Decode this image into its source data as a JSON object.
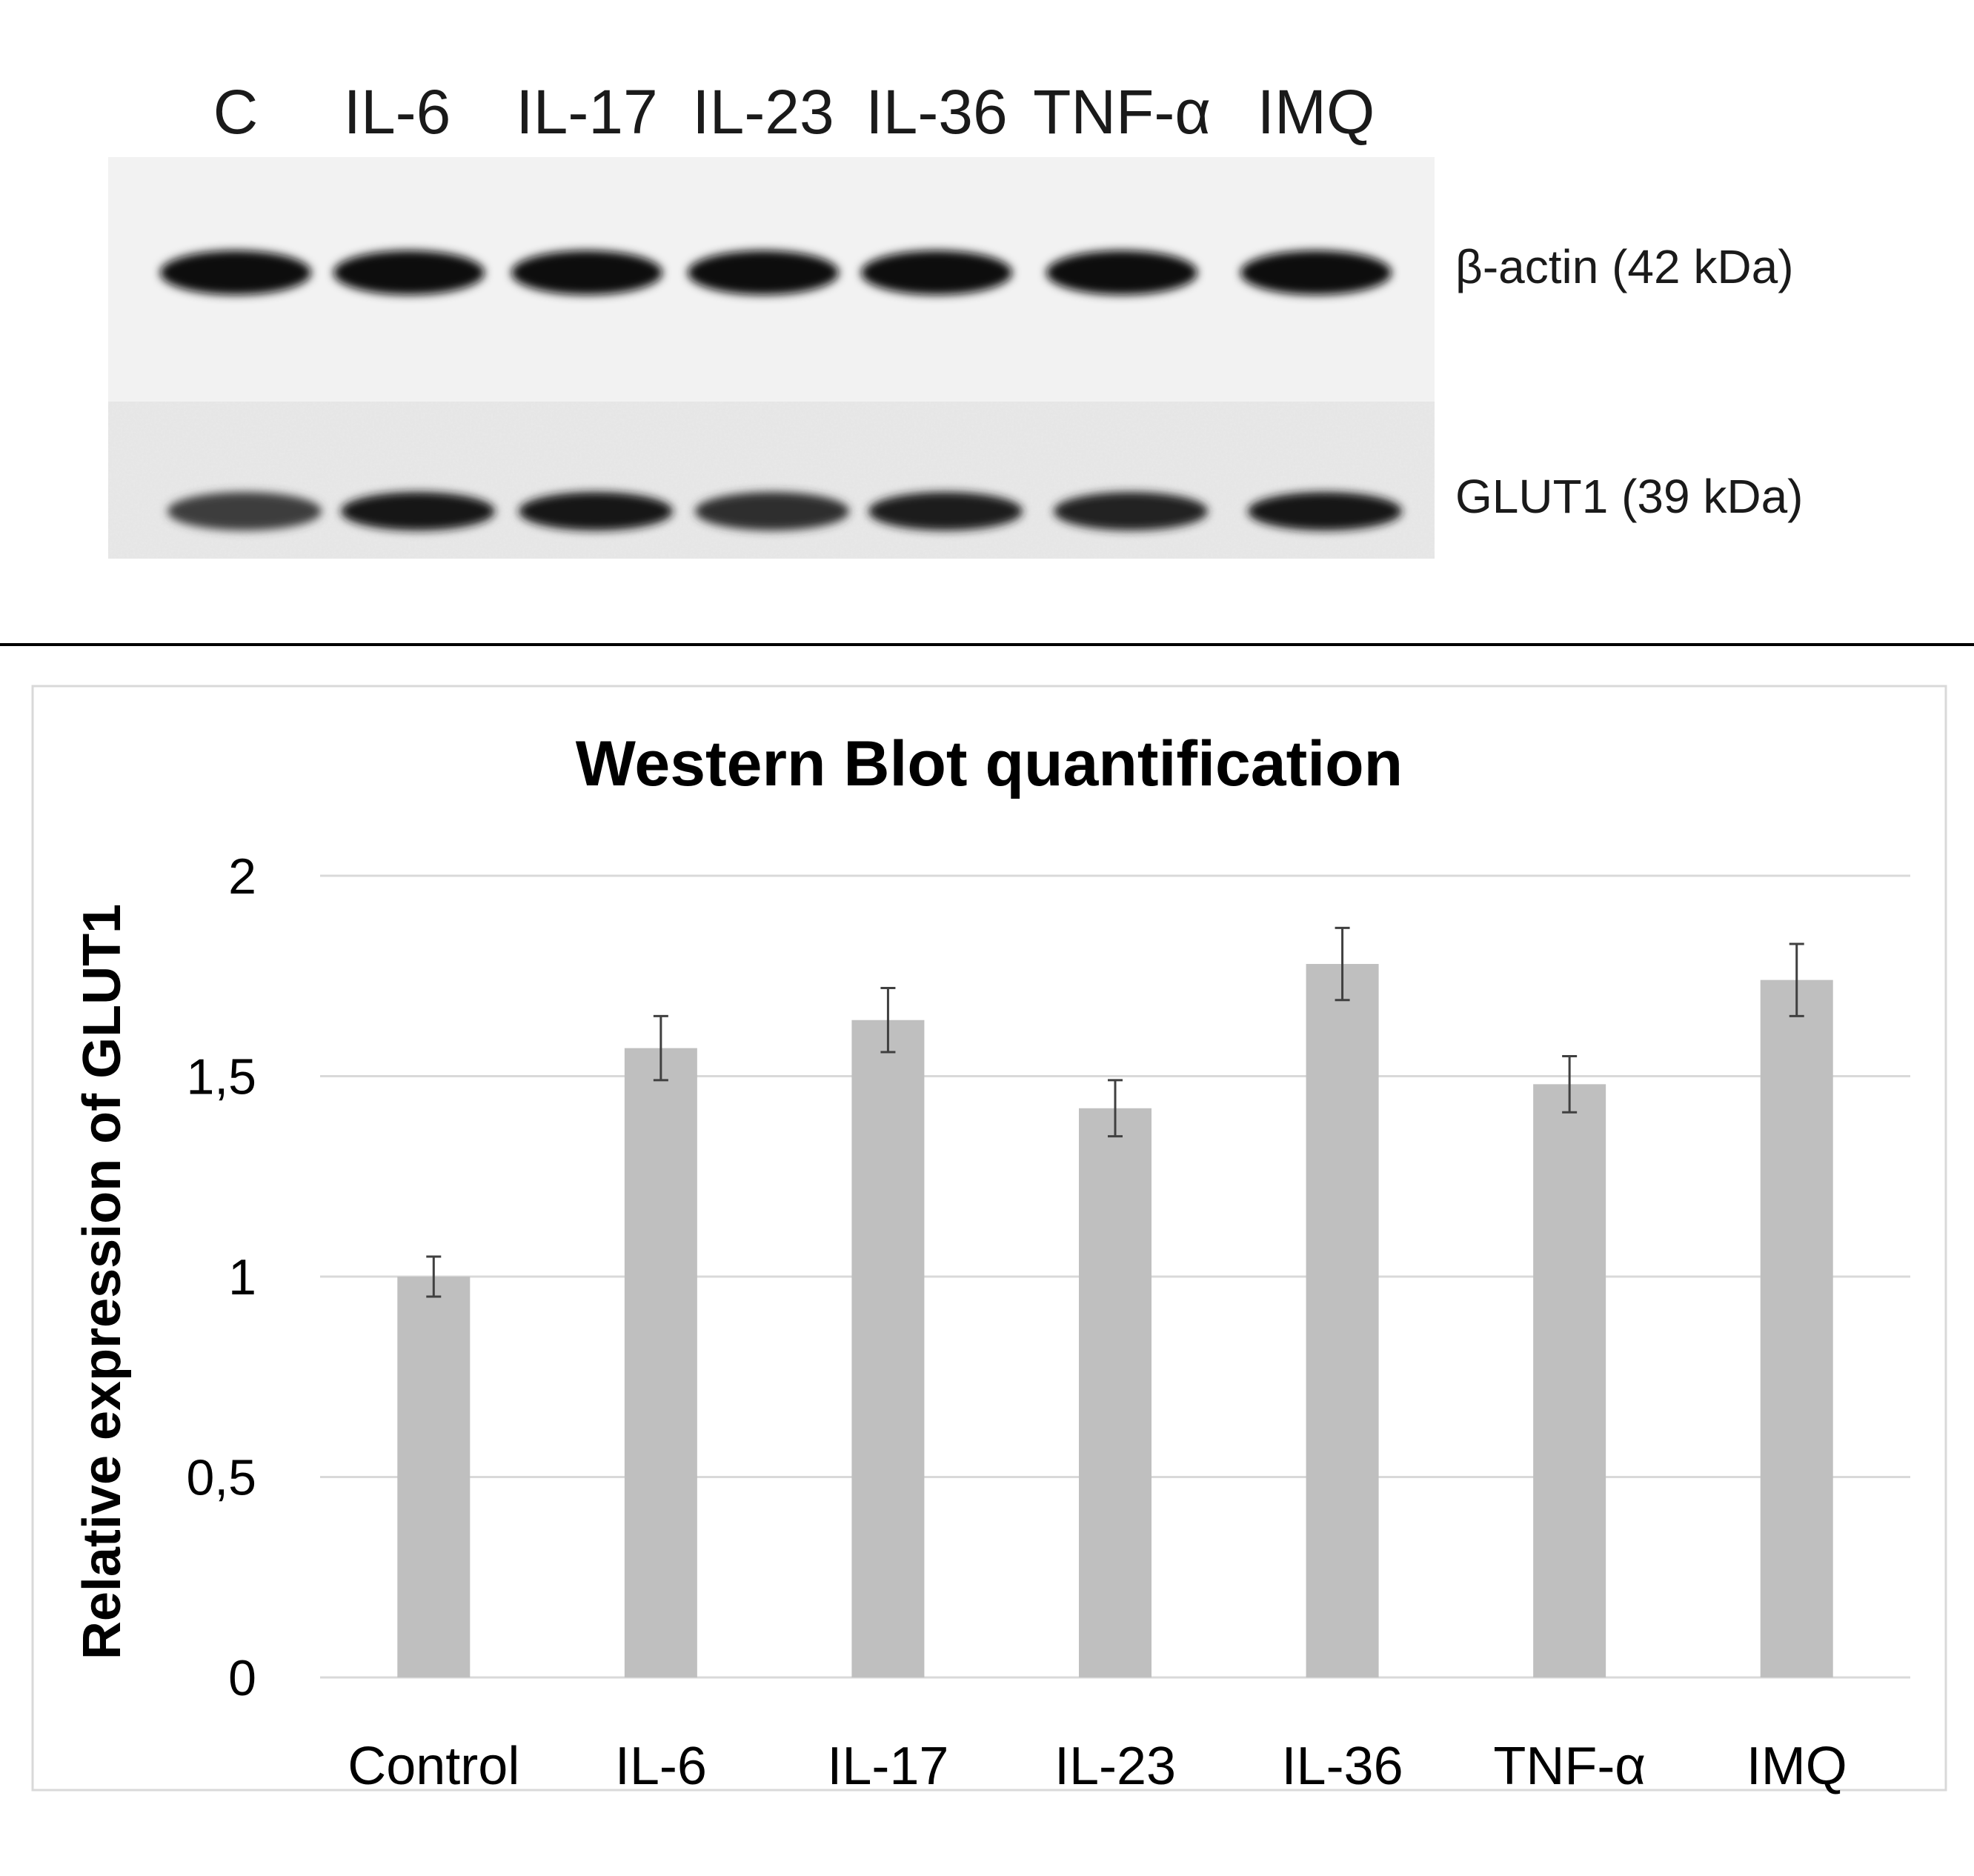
{
  "blot": {
    "lane_labels": [
      "C",
      "IL-6",
      "IL-17",
      "IL-23",
      "IL-36",
      "TNF-α",
      "IMQ"
    ],
    "band_labels": [
      "β-actin (42 kDa)",
      "GLUT1  (39 kDa)"
    ],
    "glut1_relative_darkness": [
      0.55,
      1.0,
      0.95,
      0.7,
      0.92,
      0.85,
      1.0
    ]
  },
  "chart_data": {
    "type": "bar",
    "title": "Western Blot quantification",
    "xlabel": "",
    "ylabel": "Relative expression of GLUT1",
    "categories": [
      "Control",
      "IL-6",
      "IL-17",
      "IL-23",
      "IL-36",
      "TNF-α",
      "IMQ"
    ],
    "values": [
      1.0,
      1.57,
      1.64,
      1.42,
      1.78,
      1.48,
      1.74
    ],
    "error": [
      0.05,
      0.08,
      0.08,
      0.07,
      0.09,
      0.07,
      0.09
    ],
    "ylim": [
      0,
      2
    ],
    "yticks": [
      0,
      0.5,
      1,
      1.5,
      2
    ],
    "ytick_labels": [
      "0",
      "0,5",
      "1",
      "1,5",
      "2"
    ],
    "grid": true,
    "legend": "none",
    "bar_color": "#bfbfbf"
  }
}
